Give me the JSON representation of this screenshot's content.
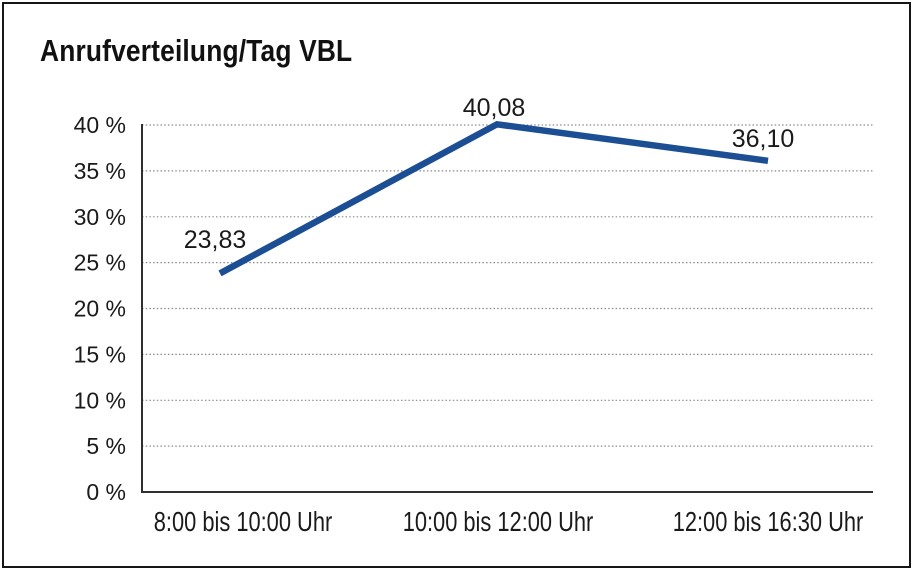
{
  "chart_data": {
    "type": "line",
    "title": "Anrufverteilung/Tag VBL",
    "categories": [
      "8:00 bis 10:00 Uhr",
      "10:00 bis 12:00 Uhr",
      "12:00 bis 16:30 Uhr"
    ],
    "values": [
      23.83,
      40.08,
      36.1
    ],
    "data_labels": [
      "23,83",
      "40,08",
      "36,10"
    ],
    "xlabel": "",
    "ylabel": "",
    "ylim": [
      0,
      40
    ],
    "ytick_step": 5,
    "ytick_labels": [
      "0 %",
      "5 %",
      "10 %",
      "15 %",
      "20 %",
      "25 %",
      "30 %",
      "35 %",
      "40 %"
    ],
    "grid": "horizontal-dotted",
    "legend": "none",
    "colors": {
      "line": "#1c4e94",
      "gridline": "#8a8a8a",
      "axis": "#2f2f2f",
      "text": "#1a1a1a",
      "frame_border": "#161616",
      "background": "#ffffff"
    }
  }
}
